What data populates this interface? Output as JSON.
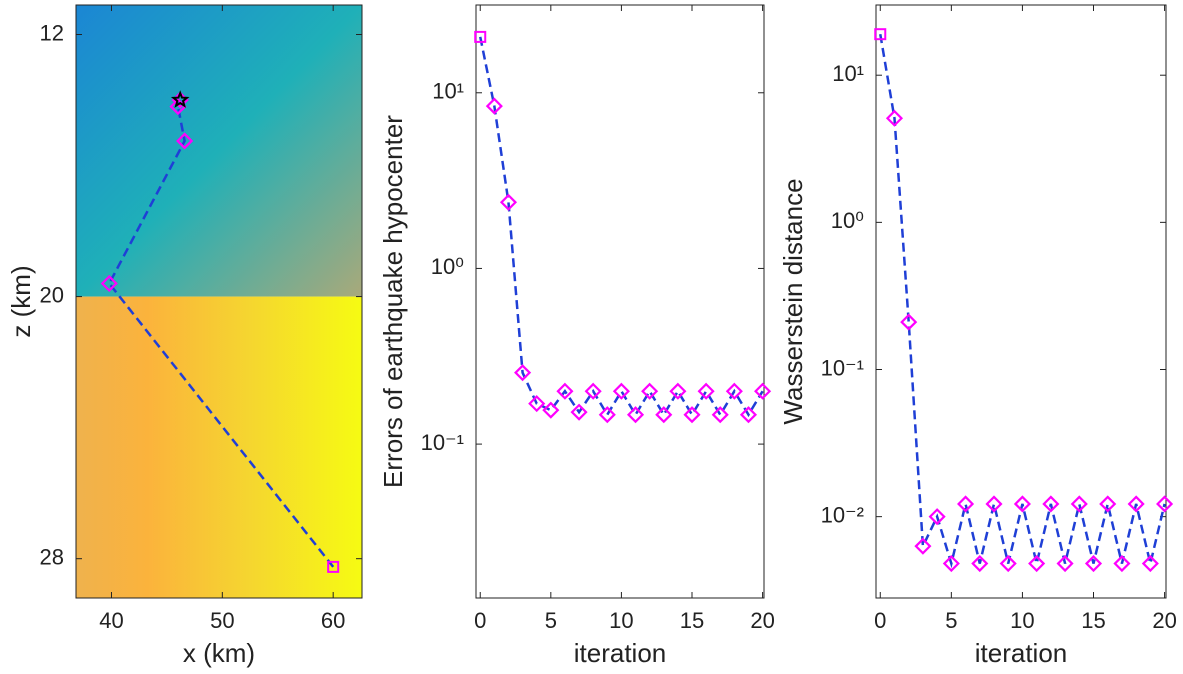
{
  "chart_data": [
    {
      "type": "path",
      "xlabel": "x (km)",
      "ylabel": "z (km)",
      "xlim": [
        36.8,
        62.6
      ],
      "ylim": [
        29.2,
        11.1
      ],
      "xticks": [
        40,
        50,
        60
      ],
      "yticks": [
        12,
        20,
        28
      ],
      "layer_boundary": 20,
      "series": [
        {
          "color": "#1f3fd6",
          "marker_color": "#ff00ff",
          "x": [
            60,
            39.8,
            46.6,
            46.0,
            46.2
          ],
          "values": [
            28.25,
            19.6,
            15.25,
            14.2,
            14.0
          ]
        }
      ],
      "star": {
        "x": 46.2,
        "y": 14.0,
        "color": "#000000"
      }
    },
    {
      "type": "line",
      "xlabel": "iteration",
      "ylabel": "Errors of earthquake hypocenter",
      "xlim": [
        -0.3,
        20.1
      ],
      "ylim": [
        0.0133,
        31.6
      ],
      "log_y": true,
      "xticks": [
        0,
        5,
        10,
        15,
        20
      ],
      "yticks": [
        {
          "value": 0.1,
          "label": "10⁻¹"
        },
        {
          "value": 1,
          "label": "10⁰"
        },
        {
          "value": 10,
          "label": "10¹"
        }
      ],
      "x": [
        0,
        1,
        2,
        3,
        4,
        5,
        6,
        7,
        8,
        9,
        10,
        11,
        12,
        13,
        14,
        15,
        16,
        17,
        18,
        19,
        20
      ],
      "series": [
        {
          "color": "#1f3fd6",
          "marker_color": "#ff00ff",
          "values": [
            20.8,
            8.4,
            2.38,
            0.255,
            0.17,
            0.156,
            0.2,
            0.152,
            0.2,
            0.147,
            0.2,
            0.147,
            0.2,
            0.147,
            0.2,
            0.147,
            0.2,
            0.147,
            0.2,
            0.147,
            0.2
          ]
        }
      ]
    },
    {
      "type": "line",
      "xlabel": "iteration",
      "ylabel": "Wasserstein distance",
      "xlim": [
        -0.3,
        20.1
      ],
      "ylim": [
        0.0028,
        30
      ],
      "log_y": true,
      "xticks": [
        0,
        5,
        10,
        15,
        20
      ],
      "yticks": [
        {
          "value": 0.01,
          "label": "10⁻²"
        },
        {
          "value": 0.1,
          "label": "10⁻¹"
        },
        {
          "value": 1,
          "label": "10⁰"
        },
        {
          "value": 10,
          "label": "10¹"
        }
      ],
      "x": [
        0,
        1,
        2,
        3,
        4,
        5,
        6,
        7,
        8,
        9,
        10,
        11,
        12,
        13,
        14,
        15,
        16,
        17,
        18,
        19,
        20
      ],
      "series": [
        {
          "color": "#1f3fd6",
          "marker_color": "#ff00ff",
          "values": [
            19,
            5.1,
            0.21,
            0.0063,
            0.01,
            0.0048,
            0.0122,
            0.0048,
            0.0122,
            0.0048,
            0.0122,
            0.0048,
            0.0122,
            0.0048,
            0.0122,
            0.0048,
            0.0122,
            0.0048,
            0.0122,
            0.0048,
            0.0122
          ]
        }
      ]
    }
  ]
}
